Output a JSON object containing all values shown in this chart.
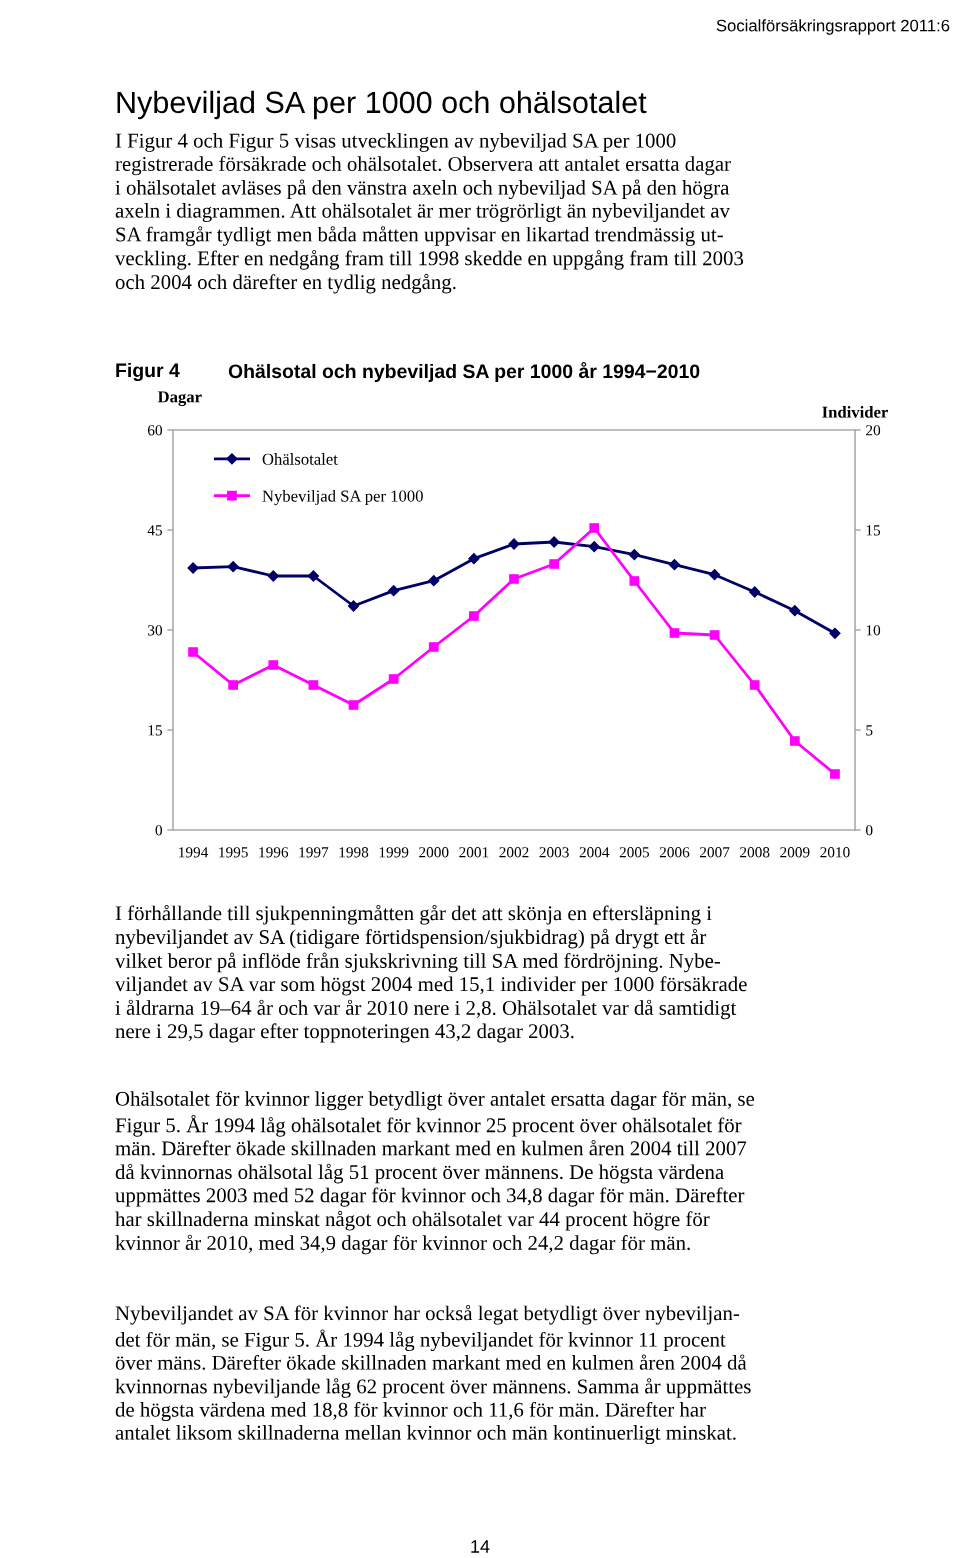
{
  "chart_data": {
    "type": "line",
    "title": "Ohälsotal och nybeviljad SA per 1000 år 1994−2010",
    "ylabel": "Dagar",
    "y2label": "Individer",
    "categories": [
      "1994",
      "1995",
      "1996",
      "1997",
      "1998",
      "1999",
      "2000",
      "2001",
      "2002",
      "2003",
      "2004",
      "2005",
      "2006",
      "2007",
      "2008",
      "2009",
      "2010"
    ],
    "series": [
      {
        "name": "Ohälsotalet",
        "color": "#000066",
        "marker": "diamond",
        "values": [
          39.3,
          39.5,
          38.1,
          38.1,
          33.6,
          35.9,
          37.4,
          40.7,
          42.9,
          43.2,
          42.5,
          41.3,
          39.8,
          38.3,
          35.7,
          32.9,
          29.5
        ]
      },
      {
        "name": "Nybeviljad SA per 1000",
        "color": "#ff00ff",
        "marker": "square",
        "axis": "y2",
        "values": [
          8.9,
          7.25,
          8.25,
          7.25,
          6.25,
          7.55,
          9.15,
          10.7,
          12.55,
          13.3,
          15.1,
          12.45,
          9.85,
          9.75,
          7.25,
          4.45,
          2.8
        ]
      }
    ],
    "ylim": [
      0,
      60
    ],
    "yticks": [
      0,
      15,
      30,
      45,
      60
    ],
    "y2lim": [
      0,
      20
    ],
    "y2ticks": [
      0,
      5,
      10,
      15,
      20
    ],
    "grid": false,
    "legend": "top left",
    "line_style": "solid",
    "annotations": [
      "Socialförsäkringsrapport 2011:6",
      "Nybeviljad SA per 1000 och ohälsotalet",
      "I Figur 4 och Figur 5 visas utvecklingen av nybeviljad SA per 1000\nregistrerade försäkrade och ohälsotalet. Observera att antalet ersatta dagar\ni ohälsotalet avläses på den vänstra axeln och nybeviljad SA på den högra\naxeln i diagrammen. Att ohälsotalet är mer trögrörligt än nybeviljandet av\nSA framgår tydligt men båda måtten uppvisar en likartad trendmässig ut-\nveckling. Efter en nedgång fram till 1998 skedde en uppgång fram till 2003\noch 2004 och därefter en tydlig nedgång.",
      "Figur 4",
      "I förhållande till sjukpenningmåtten går det att skönja en eftersläpning i\nnybeviljandet av SA (tidigare förtidspension/sjukbidrag) på drygt ett år\nvilket beror på inflöde från sjukskrivning till SA med fördröjning. Nybe-\nviljandet av SA var som högst 2004 med 15,1 individer per 1000 försäkrade\ni åldrarna 19–64 år och var år 2010 nere i 2,8. Ohälsotalet var då samtidigt\nnere i 29,5 dagar efter toppnoteringen 43,2 dagar 2003.",
      "Ohälsotalet för kvinnor ligger betydligt över antalet ersatta dagar för män, se\nFigur 5. År 1994 låg ohälsotalet för kvinnor 25 procent över ohälsotalet för\nmän. Därefter ökade skillnaden markant med en kulmen åren 2004 till 2007\ndå kvinnornas ohälsotal låg 51 procent över männens. De högsta värdena\nuppmättes 2003 med 52 dagar för kvinnor och 34,8 dagar för män. Därefter\nhar skillnaderna minskat något och ohälsotalet var 44 procent högre för\nkvinnor år 2010, med 34,9 dagar för kvinnor och 24,2 dagar för män.",
      "Nybeviljandet av SA för kvinnor har också legat betydligt över nybeviljan-\ndet för män, se Figur 5. År 1994 låg nybeviljandet för kvinnor 11 procent\növer mäns. Därefter ökade skillnaden markant med en kulmen åren 2004 då\nkvinnornas nybeviljande låg 62 procent över männens. Samma år uppmättes\nde högsta värdena med 18,8 för kvinnor och 11,6 för män. Därefter har\nantalet liksom skillnaderna mellan kvinnor och män kontinuerligt minskat.",
      "14"
    ]
  }
}
